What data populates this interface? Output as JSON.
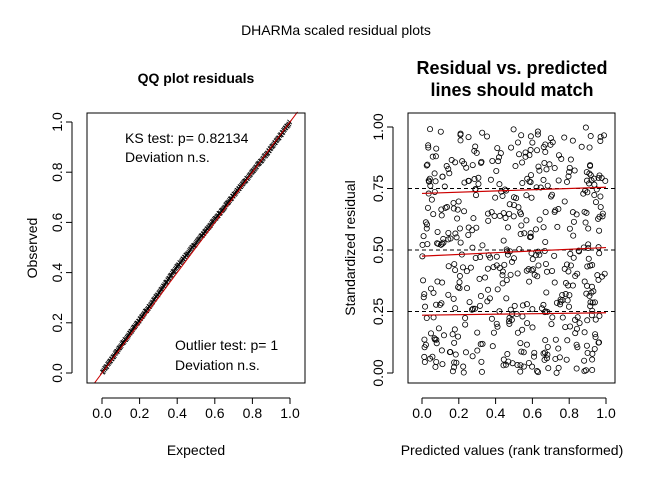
{
  "main_title": "DHARMa scaled residual plots",
  "chart_data": [
    {
      "type": "scatter",
      "panel": "qq",
      "title": "QQ plot residuals",
      "xlabel": "Expected",
      "ylabel": "Observed",
      "xlim": [
        0,
        1
      ],
      "ylim": [
        0,
        1
      ],
      "xticks": [
        "0.0",
        "0.2",
        "0.4",
        "0.6",
        "0.8",
        "1.0"
      ],
      "yticks": [
        "0.0",
        "0.2",
        "0.4",
        "0.6",
        "0.8",
        "1.0"
      ],
      "reference_line": {
        "from": [
          0,
          0
        ],
        "to": [
          1,
          1
        ],
        "color": "#cc0000"
      },
      "n_points": 250,
      "qq_deviation": [
        [
          0.0,
          0.0
        ],
        [
          0.1,
          0.008
        ],
        [
          0.2,
          0.012
        ],
        [
          0.3,
          0.016
        ],
        [
          0.4,
          0.024
        ],
        [
          0.5,
          0.018
        ],
        [
          0.6,
          0.012
        ],
        [
          0.7,
          0.008
        ],
        [
          0.8,
          0.002
        ],
        [
          0.9,
          -0.004
        ],
        [
          1.0,
          0.0
        ]
      ],
      "annotations": {
        "ks_line1": "KS test: p= 0.82134",
        "ks_line2": "Deviation  n.s.",
        "outlier_line1": "Outlier test: p= 1",
        "outlier_line2": "Deviation  n.s."
      },
      "legend": "none",
      "grid": false
    },
    {
      "type": "scatter",
      "panel": "residual-vs-predicted",
      "title_line1": "Residual vs. predicted",
      "title_line2": "lines should match",
      "xlabel": "Predicted values (rank transformed)",
      "ylabel": "Standardized residual",
      "xlim": [
        0,
        1
      ],
      "ylim": [
        0,
        1
      ],
      "xticks": [
        "0.0",
        "0.2",
        "0.4",
        "0.6",
        "0.8",
        "1.0"
      ],
      "yticks": [
        "0.00",
        "0.25",
        "0.50",
        "0.75",
        "1.00"
      ],
      "reference_quantiles": [
        0.25,
        0.5,
        0.75
      ],
      "quantile_fits": [
        {
          "q": 0.25,
          "y0": 0.235,
          "y1": 0.245,
          "color": "#cc0000"
        },
        {
          "q": 0.5,
          "y0": 0.475,
          "y1": 0.51,
          "color": "#cc0000"
        },
        {
          "q": 0.75,
          "y0": 0.73,
          "y1": 0.755,
          "color": "#cc0000"
        }
      ],
      "n_points": 500,
      "point_style": "open-circle",
      "legend": "none",
      "grid": false
    }
  ]
}
